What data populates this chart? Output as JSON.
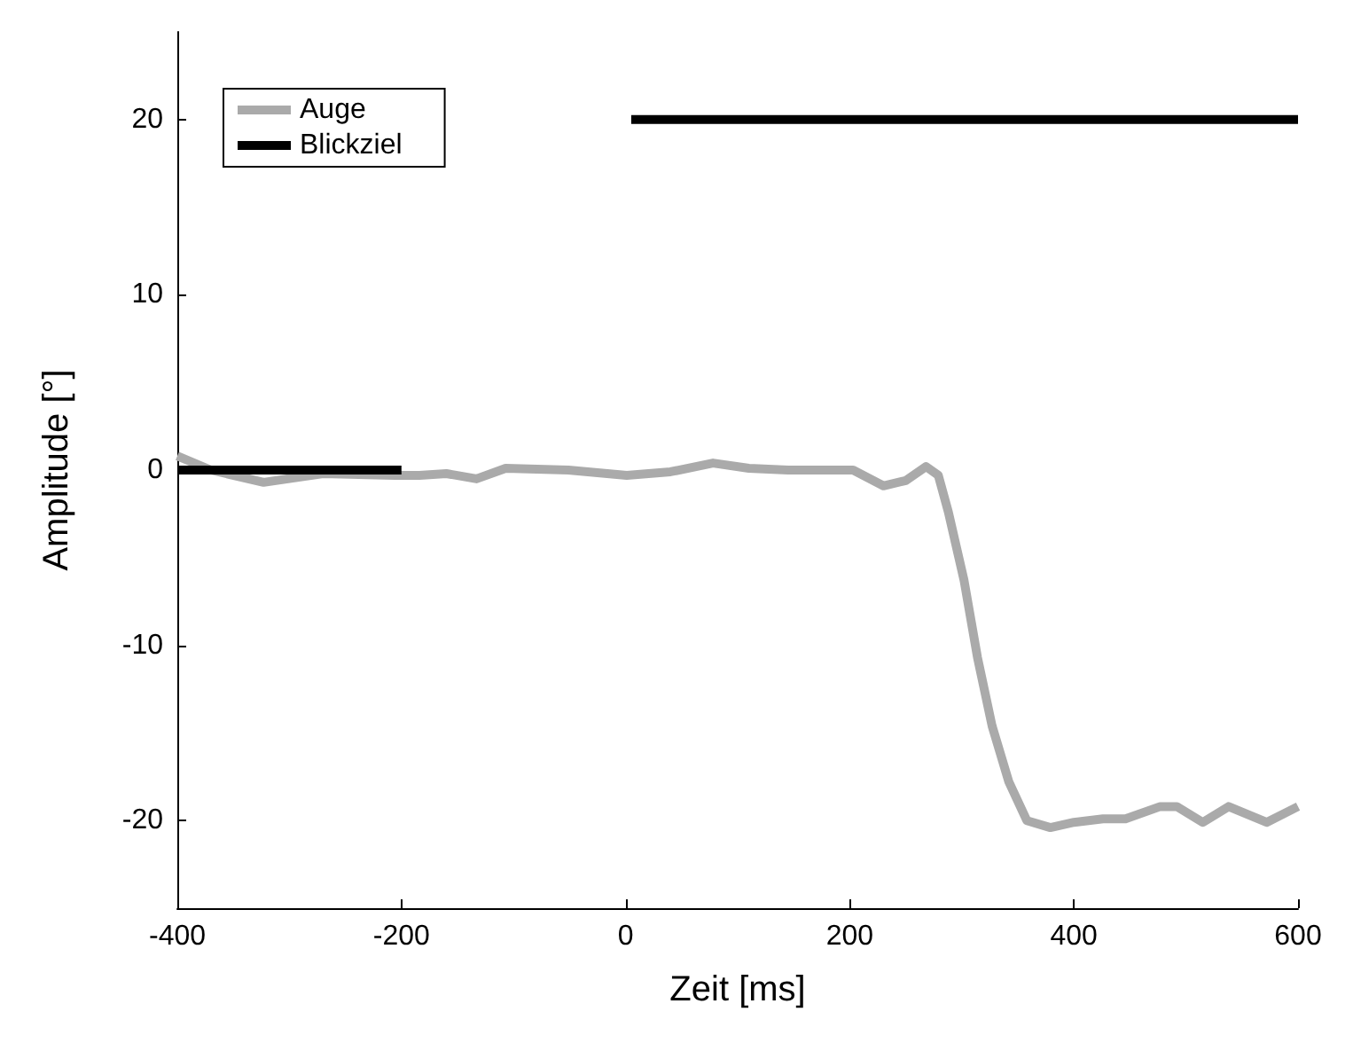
{
  "chart_data": {
    "type": "line",
    "xlabel": "Zeit [ms]",
    "ylabel": "Amplitude [°]",
    "xlim": [
      -400,
      600
    ],
    "ylim": [
      -25,
      25
    ],
    "xticks": [
      -400,
      -200,
      0,
      200,
      400,
      600
    ],
    "yticks": [
      -20,
      -10,
      0,
      10,
      20
    ],
    "grid": false,
    "legend": "top left",
    "marker": "none",
    "line_style": "solid",
    "series": [
      {
        "name": "Auge",
        "color": "#aaaaaa",
        "x": [
          -400,
          -370,
          -323,
          -270,
          -206,
          -184,
          -160,
          -133,
          -107,
          -51,
          1,
          40,
          78,
          110,
          145,
          203,
          230,
          250,
          268,
          279,
          288,
          302,
          314,
          327,
          342,
          358,
          379,
          400,
          426,
          446,
          477,
          492,
          515,
          538,
          572,
          600
        ],
        "values": [
          0.8,
          0,
          -0.7,
          -0.2,
          -0.3,
          -0.3,
          -0.2,
          -0.5,
          0.1,
          0,
          -0.3,
          -0.1,
          0.4,
          0.1,
          0,
          0,
          -0.9,
          -0.6,
          0.2,
          -0.3,
          -2.4,
          -6.3,
          -10.7,
          -14.6,
          -17.8,
          -20,
          -20.4,
          -20.1,
          -19.9,
          -19.9,
          -19.2,
          -19.2,
          -20.1,
          -19.2,
          -20.1,
          -19.2
        ]
      },
      {
        "name": "Blickziel",
        "color": "#000000",
        "x": [
          -400,
          -200,
          null,
          5,
          600
        ],
        "values": [
          0,
          0,
          null,
          20,
          20
        ]
      }
    ]
  }
}
